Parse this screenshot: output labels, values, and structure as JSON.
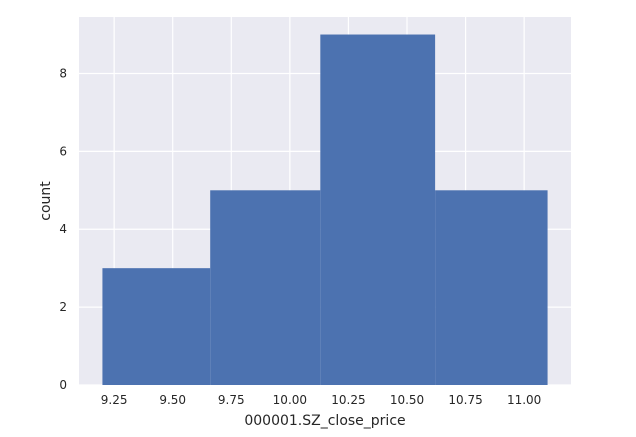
{
  "chart_data": {
    "type": "bar",
    "style": "histogram",
    "bins": [
      {
        "start": 9.2,
        "end": 9.66,
        "count": 3
      },
      {
        "start": 9.66,
        "end": 10.13,
        "count": 5
      },
      {
        "start": 10.13,
        "end": 10.62,
        "count": 9
      },
      {
        "start": 10.62,
        "end": 11.1,
        "count": 5
      }
    ],
    "xlabel": "000001.SZ_close_price",
    "ylabel": "count",
    "xlim": [
      9.1,
      11.2
    ],
    "ylim": [
      0,
      9.45
    ],
    "x_ticks": [
      9.25,
      9.5,
      9.75,
      10.0,
      10.25,
      10.5,
      10.75,
      11.0
    ],
    "x_tick_labels": [
      "9.25",
      "9.50",
      "9.75",
      "10.00",
      "10.25",
      "10.50",
      "10.75",
      "11.00"
    ],
    "y_ticks": [
      0,
      2,
      4,
      6,
      8
    ],
    "y_tick_labels": [
      "0",
      "2",
      "4",
      "6",
      "8"
    ],
    "grid": true,
    "colors": {
      "bar": "#4c72b0",
      "background": "#eaeaf2",
      "grid": "#ffffff"
    }
  }
}
